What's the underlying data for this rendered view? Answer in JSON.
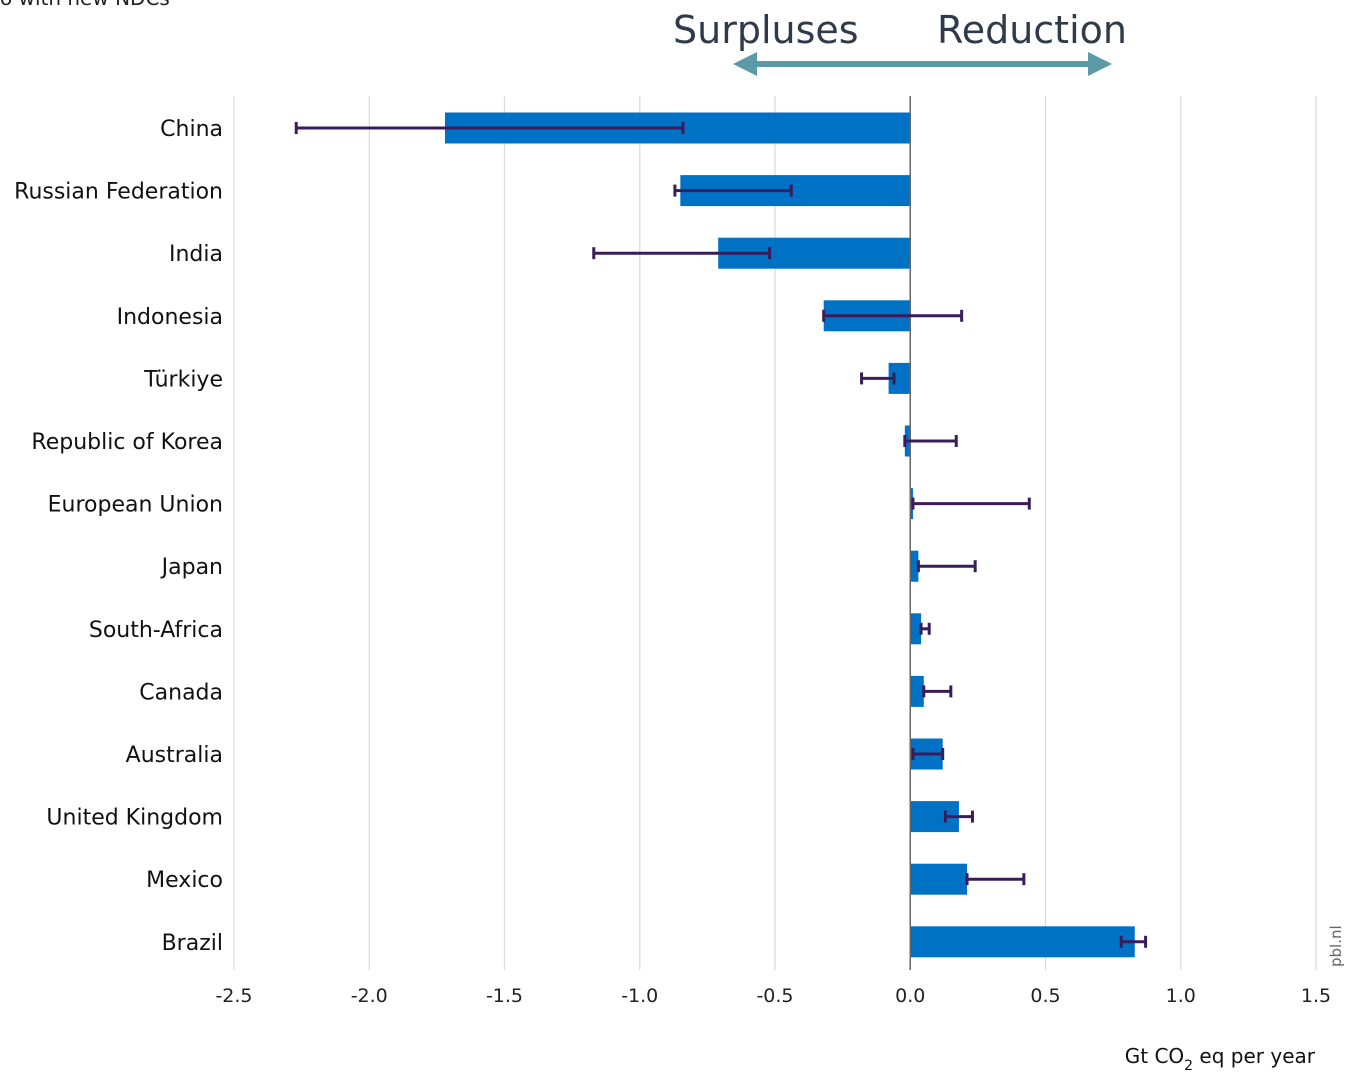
{
  "header": {
    "corner_caption": "o with new NDCs",
    "direction_left": "Surpluses",
    "direction_right": "Reduction"
  },
  "colors": {
    "bar": "#0072c6",
    "error_bar": "#3b1c5a",
    "arrow": "#5b9aa6",
    "grid": "#dcdcdc",
    "zero_line": "#666666"
  },
  "chart_data": {
    "type": "bar",
    "orientation": "horizontal",
    "categories": [
      "China",
      "Russian Federation",
      "India",
      "Indonesia",
      "Türkiye",
      "Republic of Korea",
      "European Union",
      "Japan",
      "South-Africa",
      "Canada",
      "Australia",
      "United Kingdom",
      "Mexico",
      "Brazil"
    ],
    "values": [
      -1.72,
      -0.85,
      -0.71,
      -0.32,
      -0.08,
      -0.02,
      0.01,
      0.03,
      0.04,
      0.05,
      0.12,
      0.18,
      0.21,
      0.83
    ],
    "error_low": [
      -2.27,
      -0.87,
      -1.17,
      -0.32,
      -0.18,
      -0.02,
      0.01,
      0.03,
      0.04,
      0.05,
      0.01,
      0.13,
      0.21,
      0.78
    ],
    "error_high": [
      -0.84,
      -0.44,
      -0.52,
      0.19,
      -0.06,
      0.17,
      0.44,
      0.24,
      0.07,
      0.15,
      0.12,
      0.23,
      0.42,
      0.87
    ],
    "xlim": [
      -2.5,
      1.5
    ],
    "xticks": [
      "-2.5",
      "-2.0",
      "-1.5",
      "-1.0",
      "-0.5",
      "0.0",
      "0.5",
      "1.0",
      "1.5"
    ],
    "xtick_values": [
      -2.5,
      -2.0,
      -1.5,
      -1.0,
      -0.5,
      0.0,
      0.5,
      1.0,
      1.5
    ],
    "xlabel": "Gt CO2 eq per year",
    "xlabel_parts": {
      "before": "Gt CO",
      "sub": "2",
      "after": " eq per year"
    },
    "source": "pbl.nl",
    "grid": true
  }
}
